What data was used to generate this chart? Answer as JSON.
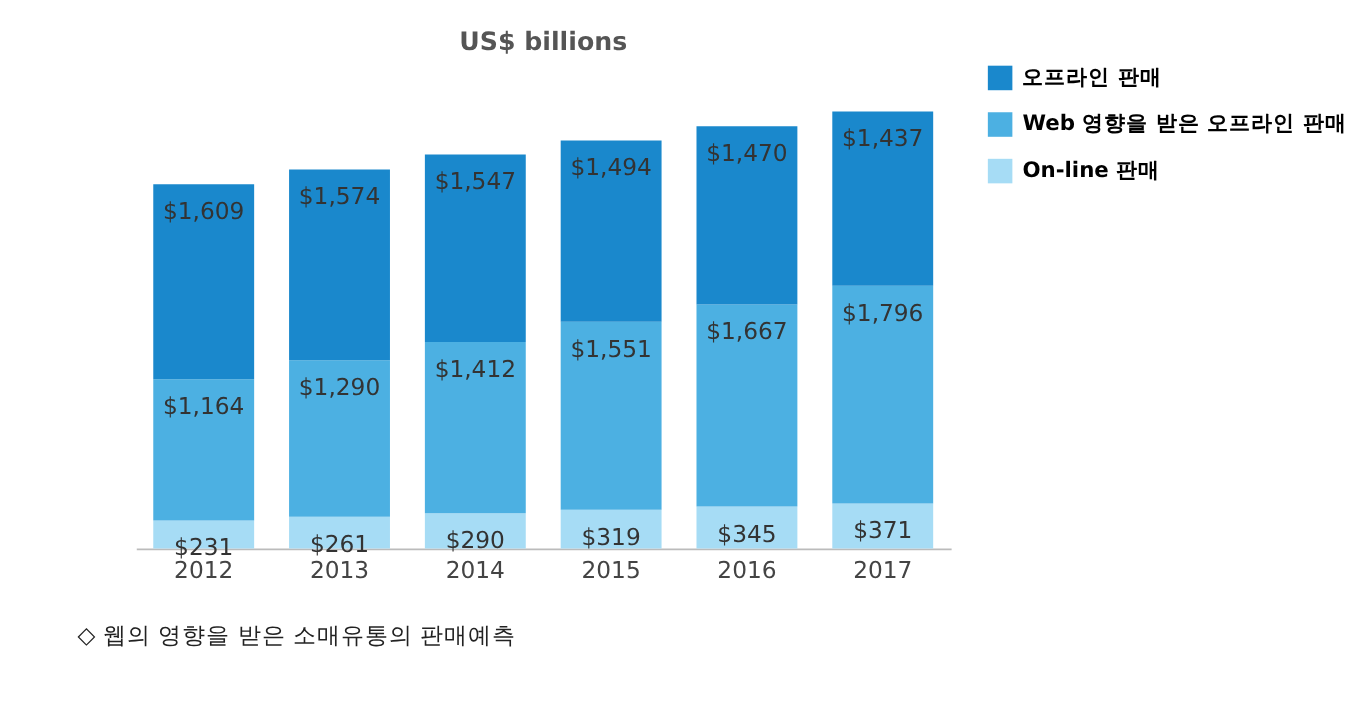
{
  "chart_data": {
    "type": "bar",
    "title": "US$ billions",
    "stacked": true,
    "legend": "top right",
    "categories": [
      "2012",
      "2013",
      "2014",
      "2015",
      "2016",
      "2017"
    ],
    "series": [
      {
        "name": "On-line 판매",
        "color": "#a6dcf5",
        "values": [
          231,
          261,
          290,
          319,
          345,
          371
        ],
        "value_labels": [
          "$231",
          "$261",
          "$290",
          "$319",
          "$345",
          "$371"
        ]
      },
      {
        "name": "Web 영향을 받은 오프라인 판매",
        "color": "#4cb0e2",
        "values": [
          1164,
          1290,
          1412,
          1551,
          1667,
          1796
        ],
        "value_labels": [
          "$1,164",
          "$1,290",
          "$1,412",
          "$1,551",
          "$1,667",
          "$1,796"
        ]
      },
      {
        "name": "오프라인 판매",
        "color": "#1a88cc",
        "values": [
          1609,
          1574,
          1547,
          1494,
          1470,
          1437
        ],
        "value_labels": [
          "$1,609",
          "$1,574",
          "$1,547",
          "$1,494",
          "$1,470",
          "$1,437"
        ]
      }
    ],
    "annotations": [
      "◇ 웹의 영향을 받은 소매유통의 판매예측"
    ]
  }
}
